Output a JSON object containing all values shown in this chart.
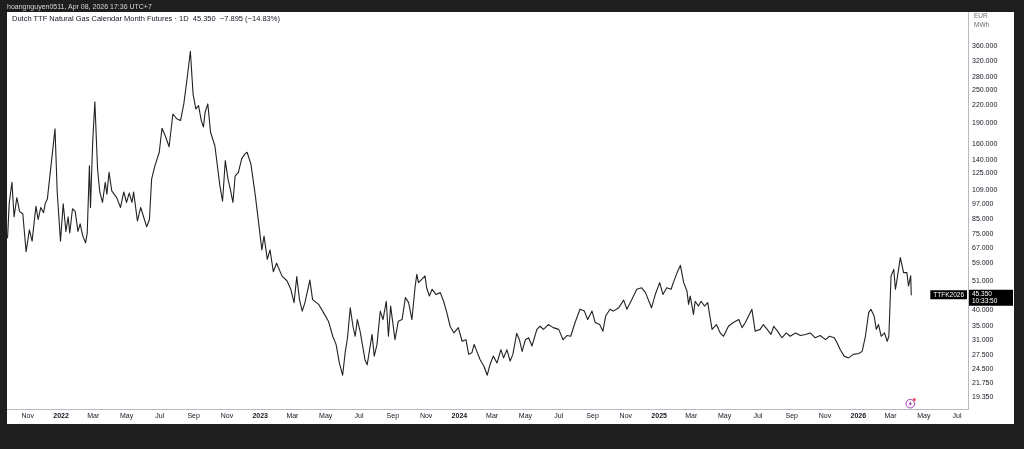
{
  "chart_data": {
    "type": "line",
    "title": "Dutch TTF Natural Gas Calendar Month Futures · 1D  45.350  −7.895 (−14.83%)",
    "ylabel": "EUR\nMWh",
    "annotations": [
      "hoangnguyen0511, Apr 08, 2026 17:36 UTC+7",
      "TTFK2026",
      "45.350",
      "10:33:50"
    ],
    "log": true,
    "grid": false,
    "legend": false,
    "color": "#222222",
    "xlim": [
      "2021-09-24",
      "2026-07-21"
    ],
    "ylim": [
      17.5,
      480
    ],
    "xticks": [
      {
        "value": "2021-11",
        "label": "Nov"
      },
      {
        "value": "2022",
        "label": "2022"
      },
      {
        "value": "2022-03",
        "label": "Mar"
      },
      {
        "value": "2022-05",
        "label": "May"
      },
      {
        "value": "2022-07",
        "label": "Jul"
      },
      {
        "value": "2022-09",
        "label": "Sep"
      },
      {
        "value": "2022-11",
        "label": "Nov"
      },
      {
        "value": "2023",
        "label": "2023"
      },
      {
        "value": "2023-03",
        "label": "Mar"
      },
      {
        "value": "2023-05",
        "label": "May"
      },
      {
        "value": "2023-07",
        "label": "Jul"
      },
      {
        "value": "2023-09",
        "label": "Sep"
      },
      {
        "value": "2023-11",
        "label": "Nov"
      },
      {
        "value": "2024",
        "label": "2024"
      },
      {
        "value": "2024-03",
        "label": "Mar"
      },
      {
        "value": "2024-05",
        "label": "May"
      },
      {
        "value": "2024-07",
        "label": "Jul"
      },
      {
        "value": "2024-09",
        "label": "Sep"
      },
      {
        "value": "2024-11",
        "label": "Nov"
      },
      {
        "value": "2025",
        "label": "2025"
      },
      {
        "value": "2025-03",
        "label": "Mar"
      },
      {
        "value": "2025-05",
        "label": "May"
      },
      {
        "value": "2025-07",
        "label": "Jul"
      },
      {
        "value": "2025-09",
        "label": "Sep"
      },
      {
        "value": "2025-11",
        "label": "Nov"
      },
      {
        "value": "2026",
        "label": "2026"
      },
      {
        "value": "2026-03",
        "label": "Mar"
      },
      {
        "value": "2026-05",
        "label": "May"
      },
      {
        "value": "2026-07",
        "label": "Jul"
      }
    ],
    "yticks": [
      {
        "value": 360,
        "label": "360.000"
      },
      {
        "value": 320,
        "label": "320.000"
      },
      {
        "value": 280,
        "label": "280.000"
      },
      {
        "value": 250,
        "label": "250.000"
      },
      {
        "value": 220,
        "label": "220.000"
      },
      {
        "value": 190,
        "label": "190.000"
      },
      {
        "value": 160,
        "label": "160.000"
      },
      {
        "value": 140,
        "label": "140.000"
      },
      {
        "value": 125,
        "label": "125.000"
      },
      {
        "value": 109,
        "label": "109.000"
      },
      {
        "value": 97,
        "label": "97.000"
      },
      {
        "value": 85,
        "label": "85.000"
      },
      {
        "value": 75,
        "label": "75.000"
      },
      {
        "value": 67,
        "label": "67.000"
      },
      {
        "value": 59,
        "label": "59.000"
      },
      {
        "value": 51,
        "label": "51.000"
      },
      {
        "value": 40,
        "label": "40.000"
      },
      {
        "value": 35,
        "label": "35.000"
      },
      {
        "value": 31,
        "label": "31.000"
      },
      {
        "value": 27.5,
        "label": "27.500"
      },
      {
        "value": 24.5,
        "label": "24.500"
      },
      {
        "value": 21.75,
        "label": "21.750"
      },
      {
        "value": 19.35,
        "label": "19.350"
      }
    ],
    "x": [
      "2021-09-25",
      "2021-09-28",
      "2021-10-03",
      "2021-10-07",
      "2021-10-12",
      "2021-10-17",
      "2021-10-23",
      "2021-10-29",
      "2021-11-04",
      "2021-11-09",
      "2021-11-16",
      "2021-11-20",
      "2021-11-25",
      "2021-11-30",
      "2021-12-03",
      "2021-12-07",
      "2021-12-15",
      "2021-12-21",
      "2021-12-25",
      "2021-12-31",
      "2022-01-05",
      "2022-01-10",
      "2022-01-14",
      "2022-01-17",
      "2022-01-22",
      "2022-01-27",
      "2022-02-01",
      "2022-02-05",
      "2022-02-10",
      "2022-02-15",
      "2022-02-18",
      "2022-02-22",
      "2022-02-24",
      "2022-02-28",
      "2022-03-04",
      "2022-03-09",
      "2022-03-13",
      "2022-03-18",
      "2022-03-23",
      "2022-03-26",
      "2022-03-30",
      "2022-04-04",
      "2022-04-13",
      "2022-04-20",
      "2022-04-26",
      "2022-05-01",
      "2022-05-06",
      "2022-05-11",
      "2022-05-14",
      "2022-05-21",
      "2022-05-27",
      "2022-06-07",
      "2022-06-12",
      "2022-06-16",
      "2022-06-22",
      "2022-06-30",
      "2022-07-05",
      "2022-07-11",
      "2022-07-18",
      "2022-07-25",
      "2022-08-01",
      "2022-08-08",
      "2022-08-14",
      "2022-08-20",
      "2022-08-26",
      "2022-08-31",
      "2022-09-05",
      "2022-09-10",
      "2022-09-15",
      "2022-09-19",
      "2022-09-22",
      "2022-09-27",
      "2022-10-02",
      "2022-10-10",
      "2022-10-19",
      "2022-10-24",
      "2022-10-29",
      "2022-11-03",
      "2022-11-07",
      "2022-11-12",
      "2022-11-16",
      "2022-11-22",
      "2022-11-28",
      "2022-12-04",
      "2022-12-08",
      "2022-12-15",
      "2022-12-23",
      "2022-12-29",
      "2023-01-04",
      "2023-01-08",
      "2023-01-14",
      "2023-01-19",
      "2023-01-25",
      "2023-01-31",
      "2023-02-10",
      "2023-02-19",
      "2023-02-26",
      "2023-03-04",
      "2023-03-09",
      "2023-03-14",
      "2023-03-19",
      "2023-03-24",
      "2023-04-02",
      "2023-04-07",
      "2023-04-18",
      "2023-04-27",
      "2023-05-06",
      "2023-05-14",
      "2023-05-20",
      "2023-05-26",
      "2023-06-01",
      "2023-06-06",
      "2023-06-10",
      "2023-06-15",
      "2023-06-20",
      "2023-06-24",
      "2023-06-28",
      "2023-07-03",
      "2023-07-12",
      "2023-07-16",
      "2023-07-25",
      "2023-07-29",
      "2023-08-03",
      "2023-08-09",
      "2023-08-14",
      "2023-08-20",
      "2023-08-24",
      "2023-08-28",
      "2023-09-05",
      "2023-09-11",
      "2023-09-18",
      "2023-09-24",
      "2023-09-30",
      "2023-10-06",
      "2023-10-12",
      "2023-10-15",
      "2023-10-18",
      "2023-10-24",
      "2023-10-30",
      "2023-11-02",
      "2023-11-07",
      "2023-11-12",
      "2023-11-19",
      "2023-11-27",
      "2023-12-03",
      "2023-12-09",
      "2023-12-15",
      "2023-12-22",
      "2023-12-30",
      "2024-01-06",
      "2024-01-13",
      "2024-01-18",
      "2024-01-24",
      "2024-01-28",
      "2024-02-02",
      "2024-02-08",
      "2024-02-15",
      "2024-02-21",
      "2024-02-26",
      "2024-03-03",
      "2024-03-10",
      "2024-03-17",
      "2024-03-22",
      "2024-03-28",
      "2024-04-03",
      "2024-04-08",
      "2024-04-15",
      "2024-04-20",
      "2024-04-25",
      "2024-05-01",
      "2024-05-07",
      "2024-05-13",
      "2024-05-22",
      "2024-05-28",
      "2024-06-03",
      "2024-06-12",
      "2024-06-21",
      "2024-07-01",
      "2024-07-09",
      "2024-07-16",
      "2024-07-23",
      "2024-07-31",
      "2024-08-09",
      "2024-08-17",
      "2024-08-23",
      "2024-08-31",
      "2024-09-06",
      "2024-09-14",
      "2024-09-20",
      "2024-09-25",
      "2024-10-03",
      "2024-10-09",
      "2024-10-19",
      "2024-10-28",
      "2024-11-03",
      "2024-11-12",
      "2024-11-21",
      "2024-11-30",
      "2024-12-07",
      "2024-12-18",
      "2024-12-25",
      "2025-01-02",
      "2025-01-08",
      "2025-01-15",
      "2025-01-23",
      "2025-01-27",
      "2025-02-03",
      "2025-02-09",
      "2025-02-15",
      "2025-02-21",
      "2025-02-24",
      "2025-02-27",
      "2025-03-05",
      "2025-03-08",
      "2025-03-14",
      "2025-03-19",
      "2025-03-25",
      "2025-03-31",
      "2025-04-08",
      "2025-04-16",
      "2025-04-23",
      "2025-04-29",
      "2025-05-08",
      "2025-05-17",
      "2025-05-27",
      "2025-06-02",
      "2025-06-08",
      "2025-06-14",
      "2025-06-20",
      "2025-06-26",
      "2025-07-05",
      "2025-07-11",
      "2025-07-18",
      "2025-07-25",
      "2025-07-30",
      "2025-08-06",
      "2025-08-14",
      "2025-08-22",
      "2025-08-29",
      "2025-09-08",
      "2025-09-17",
      "2025-09-26",
      "2025-10-05",
      "2025-10-14",
      "2025-10-23",
      "2025-11-02",
      "2025-11-09",
      "2025-11-18",
      "2025-11-23",
      "2025-11-29",
      "2025-12-06",
      "2025-12-14",
      "2025-12-23",
      "2026-01-02",
      "2026-01-08",
      "2026-01-14",
      "2026-01-20",
      "2026-01-24",
      "2026-01-30",
      "2026-02-03",
      "2026-02-07",
      "2026-02-12",
      "2026-02-18",
      "2026-02-23",
      "2026-02-26",
      "2026-03-02",
      "2026-03-07",
      "2026-03-10",
      "2026-03-13",
      "2026-03-19",
      "2026-03-25",
      "2026-03-31",
      "2026-04-03",
      "2026-04-07",
      "2026-04-08"
    ],
    "values": [
      73,
      97,
      116,
      87,
      102,
      91,
      89,
      65,
      78,
      71,
      95,
      85,
      94,
      90,
      97,
      101,
      141,
      181,
      107,
      71,
      97,
      77,
      87,
      76,
      93,
      91,
      77,
      82,
      74,
      70,
      76,
      133,
      94,
      162,
      227,
      129,
      107,
      98,
      116,
      105,
      126,
      108,
      102,
      94,
      107,
      98,
      106,
      98,
      107,
      84,
      94,
      80,
      85,
      119,
      133,
      149,
      182,
      171,
      156,
      205,
      197,
      194,
      223,
      275,
      346,
      242,
      214,
      220,
      194,
      184,
      208,
      223,
      176,
      157,
      113,
      99,
      139,
      119,
      110,
      98,
      122,
      126,
      141,
      147,
      149,
      135,
      104,
      83,
      66,
      74,
      61,
      66,
      55,
      59,
      53,
      51,
      47.5,
      42.5,
      52.8,
      43.6,
      39.6,
      42.5,
      51.3,
      43.6,
      41.9,
      39.1,
      36.4,
      32.1,
      30.0,
      25.7,
      23.2,
      28.3,
      31.7,
      40.7,
      34.9,
      32.1,
      36.9,
      33.5,
      26.4,
      25.3,
      32.6,
      27.2,
      30.0,
      39.6,
      36.9,
      43.0,
      32.1,
      41.3,
      31.2,
      36.4,
      36.9,
      44.3,
      42.5,
      36.9,
      48.8,
      53.8,
      50.2,
      51.6,
      53.1,
      48.1,
      44.9,
      47.5,
      45.5,
      46.2,
      43.0,
      39.1,
      34.9,
      33.0,
      34.5,
      30.8,
      31.2,
      27.6,
      28.0,
      30.0,
      28.3,
      26.4,
      25.0,
      23.2,
      25.3,
      27.2,
      25.7,
      28.7,
      26.8,
      28.7,
      26.1,
      27.6,
      32.9,
      31.2,
      28.3,
      31.2,
      31.7,
      29.6,
      34.0,
      34.9,
      34.0,
      35.4,
      34.5,
      34.0,
      31.2,
      32.3,
      32.1,
      36.0,
      40.2,
      39.6,
      36.9,
      39.6,
      36.0,
      35.4,
      33.5,
      38.0,
      40.2,
      39.6,
      40.7,
      43.4,
      40.2,
      43.6,
      47.5,
      48.1,
      46.2,
      40.7,
      45.5,
      50.2,
      45.5,
      48.1,
      47.5,
      50.2,
      54.6,
      58.0,
      50.2,
      46.8,
      41.9,
      44.9,
      38.5,
      43.0,
      41.3,
      43.0,
      41.3,
      42.5,
      34.0,
      35.4,
      33.0,
      32.1,
      34.9,
      36.0,
      36.9,
      34.5,
      36.0,
      38.0,
      40.2,
      33.5,
      34.0,
      35.4,
      34.0,
      32.6,
      34.9,
      33.5,
      31.7,
      33.0,
      32.1,
      33.0,
      32.3,
      32.6,
      33.0,
      31.7,
      32.3,
      31.2,
      32.1,
      31.7,
      30.4,
      28.7,
      27.2,
      26.8,
      27.6,
      27.8,
      28.3,
      32.1,
      39.1,
      40.2,
      38.0,
      34.0,
      35.4,
      32.1,
      33.0,
      30.8,
      32.1,
      53.1,
      56.1,
      47.5,
      51.6,
      61.9,
      54.6,
      54.6,
      48.8,
      53.2,
      45.35
    ]
  }
}
